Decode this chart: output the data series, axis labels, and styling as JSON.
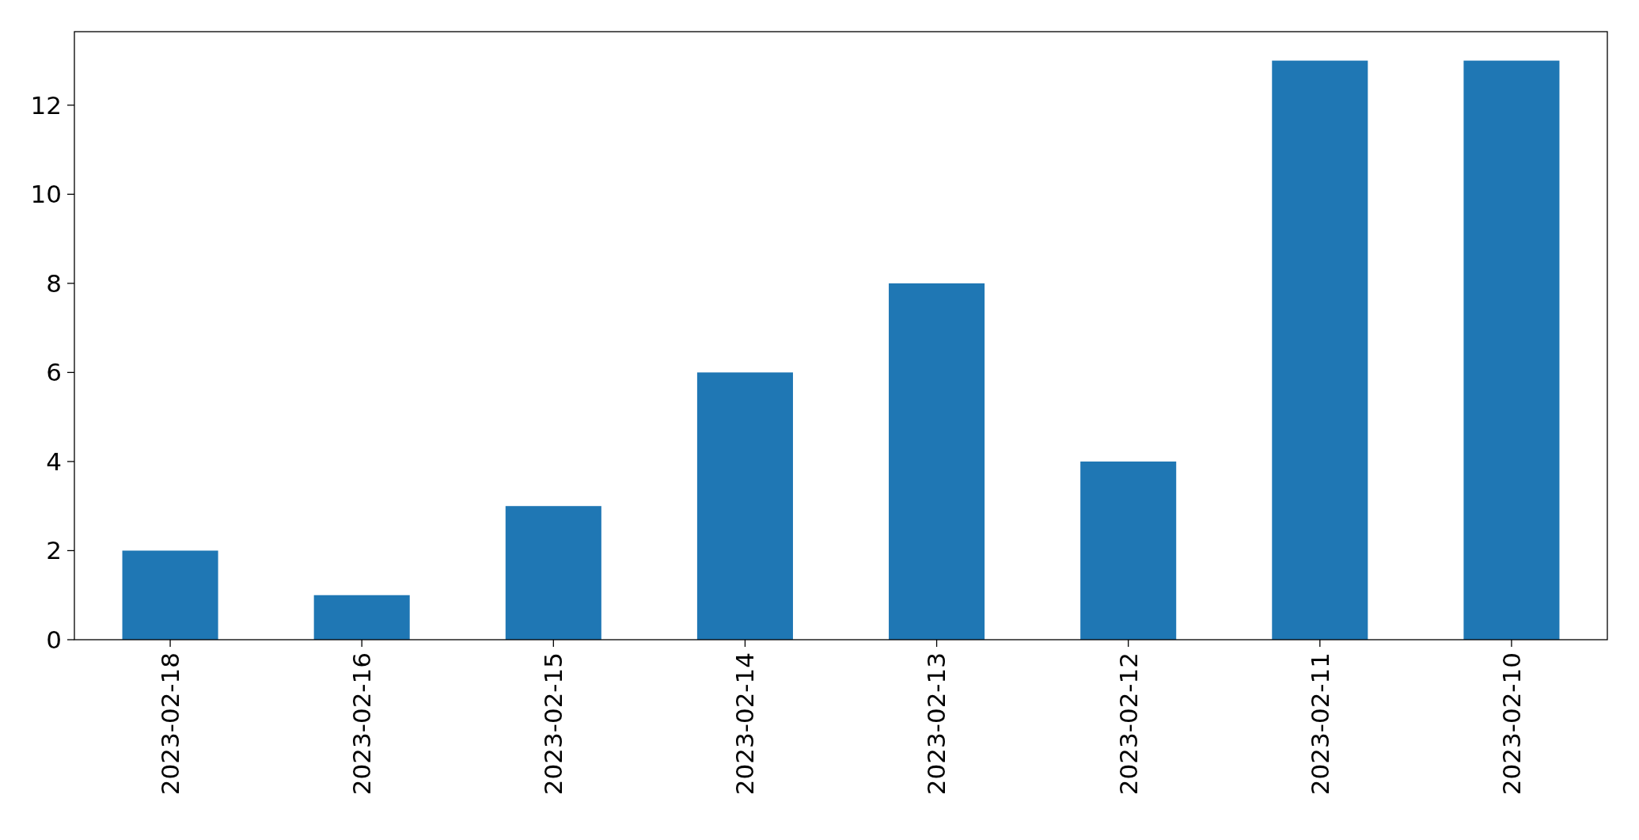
{
  "chart_data": {
    "type": "bar",
    "categories": [
      "2023-02-18",
      "2023-02-16",
      "2023-02-15",
      "2023-02-14",
      "2023-02-13",
      "2023-02-12",
      "2023-02-11",
      "2023-02-10"
    ],
    "values": [
      2,
      1,
      3,
      6,
      8,
      4,
      13,
      13
    ],
    "color": "#1f77b4",
    "ylim": [
      0,
      13.65
    ],
    "yticks": [
      0,
      2,
      4,
      6,
      8,
      10,
      12
    ],
    "grid": false
  }
}
